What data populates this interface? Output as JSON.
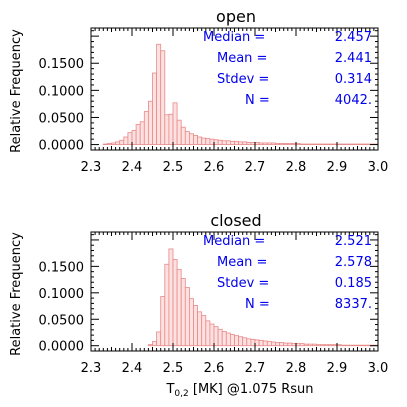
{
  "colors": {
    "bar_fill": "#fde0e0",
    "bar_stroke": "#e88a8a",
    "stats_text": "#0000ee",
    "axis": "#000000"
  },
  "chart_data": [
    {
      "type": "bar",
      "title": "open",
      "ylabel": "Relative Frequency",
      "xlabel": "",
      "xlim": [
        2.3,
        3.0
      ],
      "ylim": [
        -0.01,
        0.215
      ],
      "x_ticks": [
        "2.3",
        "2.4",
        "2.5",
        "2.6",
        "2.7",
        "2.8",
        "2.9",
        "3.0"
      ],
      "y_ticks": [
        "0.0000",
        "0.0500",
        "0.1000",
        "0.1500"
      ],
      "bin_width": 0.01,
      "bin_start": 2.33,
      "values": [
        0.001,
        0.002,
        0.003,
        0.005,
        0.008,
        0.014,
        0.022,
        0.026,
        0.037,
        0.042,
        0.061,
        0.08,
        0.132,
        0.185,
        0.173,
        0.055,
        0.056,
        0.077,
        0.045,
        0.032,
        0.024,
        0.02,
        0.017,
        0.014,
        0.012,
        0.011,
        0.01,
        0.009,
        0.008,
        0.007,
        0.007,
        0.006,
        0.006,
        0.005,
        0.005,
        0.004,
        0.004,
        0.004,
        0.003,
        0.003,
        0.003,
        0.003,
        0.002,
        0.002,
        0.002,
        0.002,
        0.002,
        0.002,
        0.001,
        0.001,
        0.001,
        0.001,
        0.001,
        0.001,
        0.001,
        0.001,
        0.001,
        0.001,
        0.001,
        0.001,
        0.001,
        0.001,
        0.001,
        0.001,
        0.001,
        0.001,
        0.001
      ],
      "stats": [
        {
          "label": "Median =",
          "value": "2.457"
        },
        {
          "label": "Mean =",
          "value": "2.441"
        },
        {
          "label": "Stdev =",
          "value": "0.314"
        },
        {
          "label": "N =",
          "value": "4042."
        }
      ]
    },
    {
      "type": "bar",
      "title": "closed",
      "ylabel": "Relative Frequency",
      "xlabel": "T0,2 [MK] @1.075 Rsun",
      "xlabel_main": "T",
      "xlabel_sub": "0,2",
      "xlabel_rest": " [MK] @1.075 Rsun",
      "xlim": [
        2.3,
        3.0
      ],
      "ylim": [
        -0.01,
        0.215
      ],
      "x_ticks": [
        "2.3",
        "2.4",
        "2.5",
        "2.6",
        "2.7",
        "2.8",
        "2.9",
        "3.0"
      ],
      "y_ticks": [
        "0.0000",
        "0.0500",
        "0.1000",
        "0.1500"
      ],
      "bin_width": 0.01,
      "bin_start": 2.44,
      "values": [
        0.002,
        0.008,
        0.026,
        0.093,
        0.154,
        0.183,
        0.163,
        0.144,
        0.127,
        0.11,
        0.089,
        0.076,
        0.064,
        0.057,
        0.047,
        0.041,
        0.036,
        0.031,
        0.027,
        0.024,
        0.021,
        0.019,
        0.017,
        0.015,
        0.013,
        0.012,
        0.011,
        0.01,
        0.009,
        0.008,
        0.007,
        0.006,
        0.006,
        0.005,
        0.005,
        0.004,
        0.004,
        0.004,
        0.003,
        0.003,
        0.003,
        0.002,
        0.002,
        0.002,
        0.002,
        0.002,
        0.002,
        0.001,
        0.001,
        0.001,
        0.001,
        0.001,
        0.001,
        0.001,
        0.001,
        0.001
      ],
      "stats": [
        {
          "label": "Median =",
          "value": "2.521"
        },
        {
          "label": "Mean =",
          "value": "2.578"
        },
        {
          "label": "Stdev =",
          "value": "0.185"
        },
        {
          "label": "N =",
          "value": "8337."
        }
      ]
    }
  ]
}
